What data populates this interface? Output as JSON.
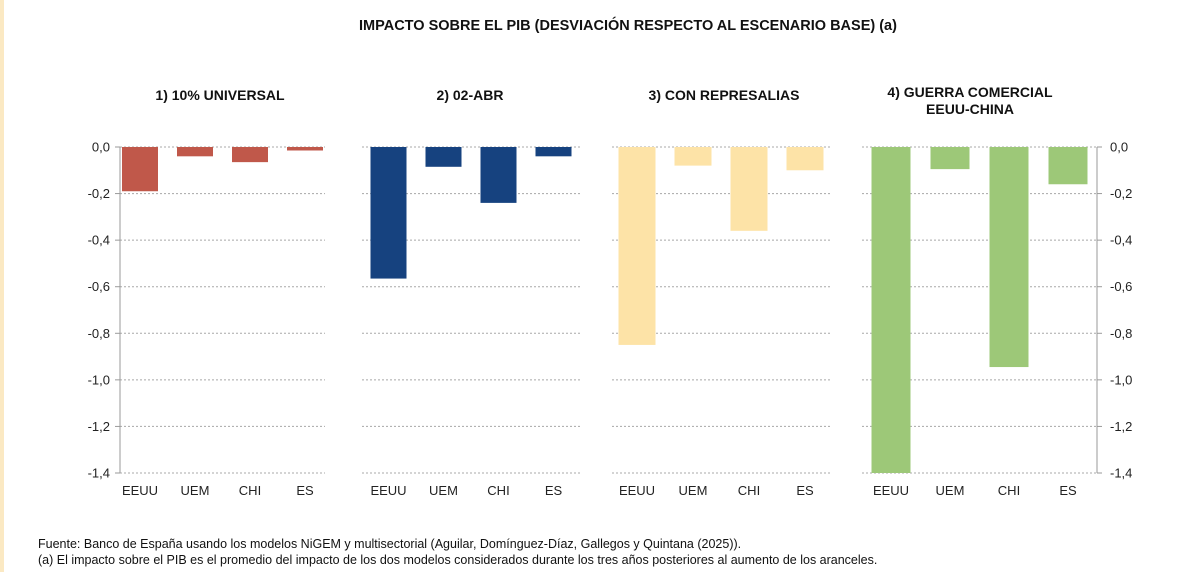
{
  "title": "IMPACTO SOBRE EL PIB (DESVIACIÓN RESPECTO AL ESCENARIO BASE) (a)",
  "chart_data": {
    "type": "bar",
    "title": "IMPACTO SOBRE EL PIB (DESVIACIÓN RESPECTO AL ESCENARIO BASE) (a)",
    "categories": [
      "EEUU",
      "UEM",
      "CHI",
      "ES"
    ],
    "ylim": [
      -1.4,
      0.0
    ],
    "yticks": [
      "0,0",
      "-0,2",
      "-0,4",
      "-0,6",
      "-0,8",
      "-1,0",
      "-1,2",
      "-1,4"
    ],
    "ytick_values": [
      0.0,
      -0.2,
      -0.4,
      -0.6,
      -0.8,
      -1.0,
      -1.2,
      -1.4
    ],
    "grid": true,
    "panels": [
      {
        "name": "1) 10% UNIVERSAL",
        "color": "#c0584a",
        "values": [
          -0.19,
          -0.04,
          -0.065,
          -0.015
        ]
      },
      {
        "name": "2) 02-ABR",
        "color": "#16427f",
        "values": [
          -0.565,
          -0.085,
          -0.24,
          -0.04
        ]
      },
      {
        "name": "3) CON REPRESALIAS",
        "color": "#fde3a7",
        "values": [
          -0.85,
          -0.08,
          -0.36,
          -0.1
        ]
      },
      {
        "name": "4) GUERRA COMERCIAL\nEEUU-CHINA",
        "color": "#9dc878",
        "values": [
          -1.4,
          -0.095,
          -0.945,
          -0.16
        ]
      }
    ]
  },
  "footnotes": {
    "source": "Fuente: Banco de España usando los modelos NiGEM y multisectorial (Aguilar, Domínguez-Díaz, Gallegos y Quintana (2025)).",
    "note": "(a) El impacto sobre el PIB es el promedio del impacto de los dos modelos considerados durante los tres años posteriores al aumento de los aranceles."
  }
}
